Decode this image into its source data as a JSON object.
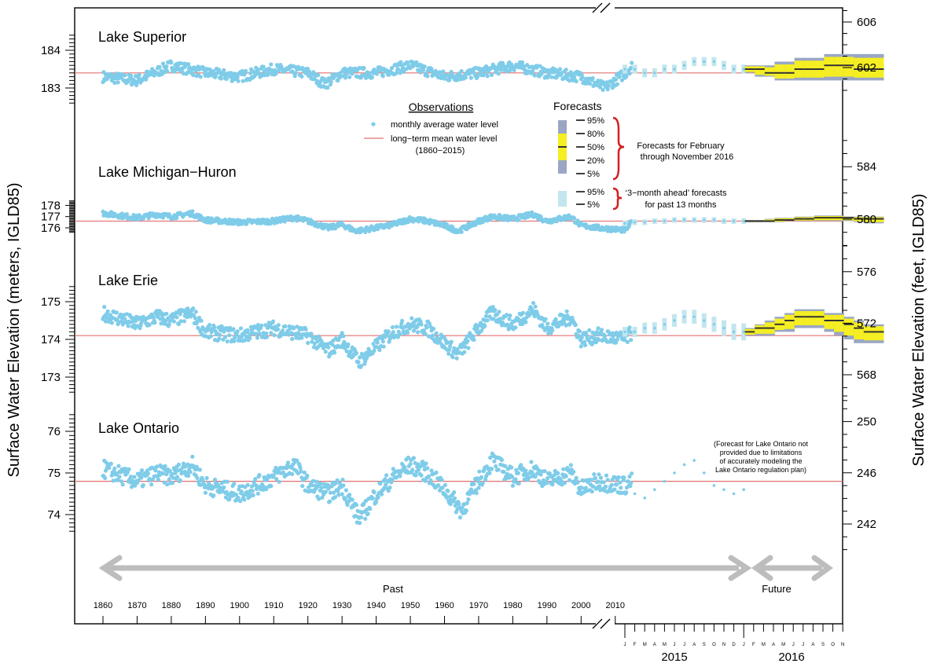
{
  "colors": {
    "observation": "#7fcce9",
    "mean_line": "#e07070",
    "forecast_outer": "#9aa7c4",
    "forecast_inner": "#f5ee22",
    "forecast_median": "#333333",
    "past_forecast": "#c3e6ee",
    "arrow": "#bdbdbd",
    "brace": "#d32020"
  },
  "chart_data": {
    "type": "scatter",
    "ylabel_left": "Surface Water Elevation (meters, IGLD85)",
    "ylabel_right": "Surface Water Elevation (feet, IGLD85)",
    "x_years": [
      1860,
      1870,
      1880,
      1890,
      1900,
      1910,
      1920,
      1930,
      1940,
      1950,
      1960,
      1970,
      1980,
      1990,
      2000,
      2010
    ],
    "x_range": [
      1860,
      2016
    ],
    "future_months": {
      "2015": [
        "J",
        "F",
        "M",
        "A",
        "M",
        "J",
        "J",
        "A",
        "S",
        "O",
        "N",
        "D"
      ],
      "2016": [
        "J",
        "F",
        "M",
        "A",
        "M",
        "J",
        "J",
        "A",
        "S",
        "O",
        "N"
      ]
    },
    "year_labels": [
      "2015",
      "2016"
    ],
    "lakes": [
      {
        "name": "Lake Superior",
        "meter_ticks": [
          183,
          184
        ],
        "feet_ticks": [
          602,
          606
        ],
        "mean": 183.4,
        "obs_range": [
          182.7,
          184.0
        ],
        "trend": [
          [
            1860,
            183.3
          ],
          [
            1870,
            183.2
          ],
          [
            1880,
            183.6
          ],
          [
            1890,
            183.4
          ],
          [
            1900,
            183.3
          ],
          [
            1910,
            183.5
          ],
          [
            1920,
            183.4
          ],
          [
            1925,
            183.1
          ],
          [
            1930,
            183.4
          ],
          [
            1940,
            183.4
          ],
          [
            1950,
            183.6
          ],
          [
            1960,
            183.3
          ],
          [
            1970,
            183.4
          ],
          [
            1980,
            183.6
          ],
          [
            1990,
            183.4
          ],
          [
            2000,
            183.3
          ],
          [
            2007,
            183.0
          ],
          [
            2013,
            183.4
          ],
          [
            2015,
            183.6
          ]
        ],
        "past_forecast_median": [
          183.5,
          183.5,
          183.4,
          183.4,
          183.5,
          183.5,
          183.6,
          183.7,
          183.7,
          183.7,
          183.6,
          183.5,
          183.5
        ],
        "forecast_median": [
          183.5,
          183.5,
          183.4,
          183.4,
          183.4,
          183.5,
          183.5,
          183.5,
          183.6,
          183.6,
          183.6,
          183.5,
          183.5,
          183.5
        ],
        "forecast_p95": [
          183.6,
          183.6,
          183.6,
          183.7,
          183.7,
          183.8,
          183.8,
          183.8,
          183.9,
          183.9,
          183.9,
          183.9,
          183.9,
          183.9
        ],
        "forecast_p5": [
          183.4,
          183.3,
          183.3,
          183.2,
          183.2,
          183.2,
          183.2,
          183.2,
          183.2,
          183.2,
          183.2,
          183.2,
          183.2,
          183.2
        ]
      },
      {
        "name": "Lake Michigan−Huron",
        "meter_ticks": [
          176,
          177,
          178
        ],
        "feet_ticks": [
          580,
          584
        ],
        "mean": 176.6,
        "obs_range": [
          175.6,
          177.6
        ],
        "trend": [
          [
            1860,
            177.3
          ],
          [
            1870,
            176.9
          ],
          [
            1876,
            177.2
          ],
          [
            1880,
            177.0
          ],
          [
            1886,
            177.3
          ],
          [
            1890,
            176.7
          ],
          [
            1900,
            176.5
          ],
          [
            1910,
            176.6
          ],
          [
            1916,
            176.9
          ],
          [
            1920,
            176.6
          ],
          [
            1926,
            176.0
          ],
          [
            1930,
            176.3
          ],
          [
            1934,
            175.7
          ],
          [
            1940,
            176.0
          ],
          [
            1945,
            176.3
          ],
          [
            1950,
            176.8
          ],
          [
            1955,
            176.6
          ],
          [
            1960,
            176.2
          ],
          [
            1964,
            175.7
          ],
          [
            1970,
            176.6
          ],
          [
            1974,
            177.0
          ],
          [
            1980,
            176.8
          ],
          [
            1986,
            177.2
          ],
          [
            1990,
            176.6
          ],
          [
            1997,
            177.0
          ],
          [
            2000,
            176.2
          ],
          [
            2005,
            176.0
          ],
          [
            2013,
            175.8
          ],
          [
            2015,
            176.6
          ]
        ],
        "past_forecast_median": [
          176.4,
          176.5,
          176.5,
          176.6,
          176.6,
          176.7,
          176.7,
          176.7,
          176.7,
          176.7,
          176.6,
          176.6,
          176.6
        ],
        "forecast_median": [
          176.6,
          176.6,
          176.6,
          176.7,
          176.7,
          176.8,
          176.8,
          176.9,
          176.9,
          176.9,
          176.9,
          176.8,
          176.8,
          176.8
        ],
        "forecast_p95": [
          176.7,
          176.7,
          176.8,
          176.9,
          176.9,
          177.0,
          177.0,
          177.1,
          177.1,
          177.1,
          177.0,
          177.0,
          177.0,
          177.0
        ],
        "forecast_p5": [
          176.5,
          176.5,
          176.5,
          176.5,
          176.6,
          176.6,
          176.6,
          176.6,
          176.6,
          176.6,
          176.6,
          176.5,
          176.4,
          176.4
        ]
      },
      {
        "name": "Lake Erie",
        "meter_ticks": [
          173,
          174,
          175
        ],
        "feet_ticks": [
          568,
          572,
          576
        ],
        "mean": 174.1,
        "obs_range": [
          173.2,
          175.0
        ],
        "trend": [
          [
            1860,
            174.7
          ],
          [
            1870,
            174.4
          ],
          [
            1876,
            174.6
          ],
          [
            1880,
            174.5
          ],
          [
            1886,
            174.7
          ],
          [
            1890,
            174.2
          ],
          [
            1900,
            174.1
          ],
          [
            1910,
            174.3
          ],
          [
            1920,
            174.1
          ],
          [
            1926,
            173.7
          ],
          [
            1930,
            174.0
          ],
          [
            1935,
            173.4
          ],
          [
            1940,
            173.8
          ],
          [
            1945,
            174.2
          ],
          [
            1950,
            174.4
          ],
          [
            1955,
            174.3
          ],
          [
            1960,
            173.9
          ],
          [
            1964,
            173.6
          ],
          [
            1970,
            174.3
          ],
          [
            1974,
            174.7
          ],
          [
            1980,
            174.4
          ],
          [
            1986,
            174.8
          ],
          [
            1990,
            174.3
          ],
          [
            1997,
            174.6
          ],
          [
            2000,
            174.0
          ],
          [
            2005,
            174.1
          ],
          [
            2013,
            174.0
          ],
          [
            2015,
            174.2
          ]
        ],
        "past_forecast_median": [
          174.2,
          174.2,
          174.3,
          174.3,
          174.4,
          174.5,
          174.6,
          174.6,
          174.5,
          174.4,
          174.3,
          174.2,
          174.2
        ],
        "forecast_median": [
          174.2,
          174.3,
          174.3,
          174.4,
          174.5,
          174.6,
          174.6,
          174.6,
          174.5,
          174.5,
          174.4,
          174.3,
          174.2,
          174.2
        ],
        "forecast_p95": [
          174.3,
          174.4,
          174.5,
          174.6,
          174.7,
          174.8,
          174.8,
          174.8,
          174.7,
          174.7,
          174.6,
          174.5,
          174.4,
          174.4
        ],
        "forecast_p5": [
          174.1,
          174.1,
          174.1,
          174.2,
          174.2,
          174.3,
          174.3,
          174.3,
          174.2,
          174.1,
          174.0,
          173.9,
          173.9,
          173.9
        ]
      },
      {
        "name": "Lake Ontario",
        "meter_ticks": [
          74,
          75,
          76
        ],
        "feet_ticks": [
          242,
          246,
          250
        ],
        "mean": 74.8,
        "obs_range": [
          73.8,
          75.8
        ],
        "trend": [
          [
            1860,
            75.1
          ],
          [
            1870,
            74.8
          ],
          [
            1876,
            75.0
          ],
          [
            1880,
            74.9
          ],
          [
            1886,
            75.2
          ],
          [
            1890,
            74.7
          ],
          [
            1900,
            74.5
          ],
          [
            1910,
            74.9
          ],
          [
            1916,
            75.2
          ],
          [
            1920,
            74.7
          ],
          [
            1926,
            74.5
          ],
          [
            1930,
            74.7
          ],
          [
            1935,
            73.9
          ],
          [
            1940,
            74.5
          ],
          [
            1945,
            74.9
          ],
          [
            1950,
            75.2
          ],
          [
            1955,
            75.0
          ],
          [
            1960,
            74.6
          ],
          [
            1965,
            74.1
          ],
          [
            1970,
            74.8
          ],
          [
            1974,
            75.3
          ],
          [
            1980,
            74.9
          ],
          [
            1986,
            75.1
          ],
          [
            1990,
            74.8
          ],
          [
            1997,
            75.0
          ],
          [
            2000,
            74.6
          ],
          [
            2005,
            74.8
          ],
          [
            2013,
            74.7
          ],
          [
            2015,
            74.8
          ]
        ],
        "past_months_obs": [
          74.5,
          74.5,
          74.4,
          74.6,
          74.8,
          75.0,
          75.2,
          75.3,
          75.0,
          74.7,
          74.6,
          74.5,
          74.6
        ],
        "note": [
          "(Forecast for Lake Ontario not",
          "provided due to limitations",
          "of accurately modeling the",
          "Lake Ontario regulation plan)"
        ]
      }
    ],
    "legend": {
      "observations_title": "Observations",
      "obs_label": "monthly average water level",
      "mean_label_1": "long−term mean water level",
      "mean_label_2": "(1860−2015)",
      "forecasts_title": "Forecasts",
      "p95": "95%",
      "p80": "80%",
      "p50": "50%",
      "p20": "20%",
      "p5": "5%",
      "forecast_note_1": "Forecasts for February",
      "forecast_note_2": "through November 2016",
      "past_note_1": "‘3−month ahead’ forecasts",
      "past_note_2": "for past 13 months"
    },
    "arrows": {
      "past_label": "Past",
      "future_label": "Future"
    }
  }
}
